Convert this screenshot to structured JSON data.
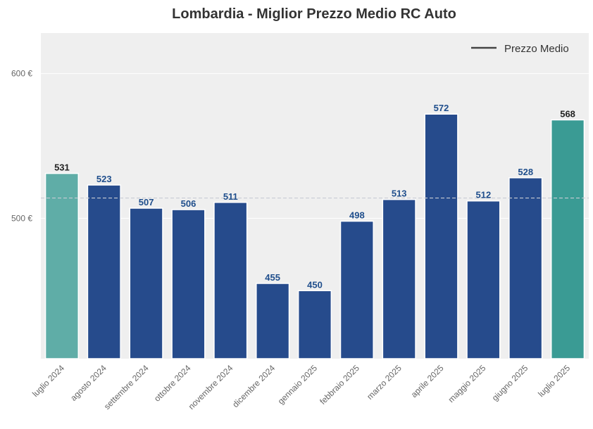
{
  "chart_data": {
    "type": "bar",
    "title": "Lombardia - Miglior Prezzo Medio RC Auto",
    "xlabel": "",
    "ylabel": "",
    "categories": [
      "luglio 2024",
      "agosto 2024",
      "settembre 2024",
      "ottobre 2024",
      "novembre 2024",
      "dicembre 2024",
      "gennaio 2025",
      "febbraio 2025",
      "marzo 2025",
      "aprile 2025",
      "maggio 2025",
      "giugno 2025",
      "luglio 2025"
    ],
    "values": [
      531,
      523,
      507,
      506,
      511,
      455,
      450,
      498,
      513,
      572,
      512,
      528,
      568
    ],
    "bar_colors": [
      "#5fada7",
      "#264b8c",
      "#264b8c",
      "#264b8c",
      "#264b8c",
      "#264b8c",
      "#264b8c",
      "#264b8c",
      "#264b8c",
      "#264b8c",
      "#264b8c",
      "#264b8c",
      "#3a9b94"
    ],
    "label_colors": [
      "#222222",
      "#1f4e8c",
      "#1f4e8c",
      "#1f4e8c",
      "#1f4e8c",
      "#1f4e8c",
      "#1f4e8c",
      "#1f4e8c",
      "#1f4e8c",
      "#1f4e8c",
      "#1f4e8c",
      "#1f4e8c",
      "#222222"
    ],
    "ylim": [
      403,
      628
    ],
    "yticks": [
      500,
      600
    ],
    "ytick_labels": [
      "500 €",
      "600 €"
    ],
    "mean_line": 514,
    "legend": {
      "position": "top-right",
      "label": "Prezzo Medio"
    },
    "grid": true,
    "background": "#efefef"
  }
}
